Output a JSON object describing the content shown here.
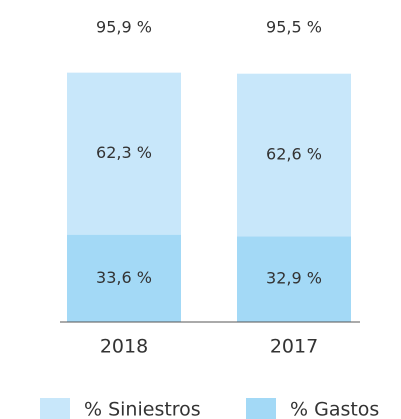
{
  "chart_data": {
    "type": "stacked-bar",
    "categories": [
      "2018",
      "2017"
    ],
    "series": [
      {
        "name": "% Gastos",
        "color": "#a3d9f6",
        "values": [
          33.6,
          32.9
        ],
        "value_labels": [
          "33,6 %",
          "32,9 %"
        ]
      },
      {
        "name": "% Siniestros",
        "color": "#c8e7fa",
        "values": [
          62.3,
          62.6
        ],
        "value_labels": [
          "62,3 %",
          "62,6 %"
        ]
      }
    ],
    "totals": {
      "values": [
        95.9,
        95.5
      ],
      "value_labels": [
        "95,9 %",
        "95,5 %"
      ]
    }
  }
}
